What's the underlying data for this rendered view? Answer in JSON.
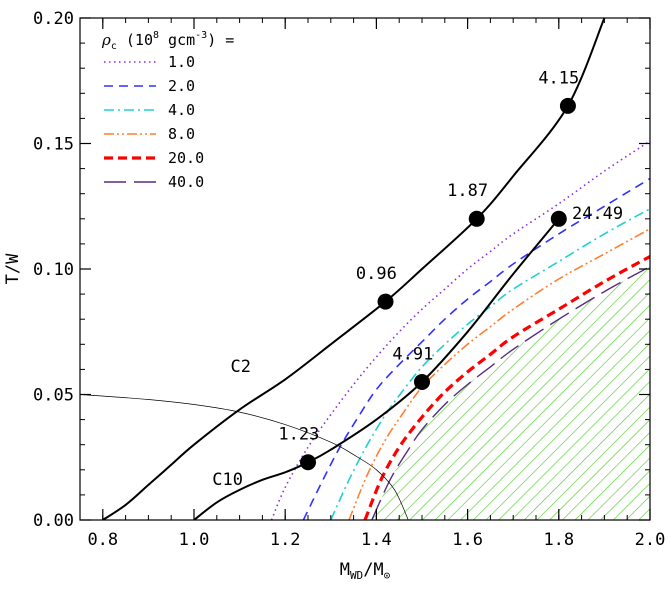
{
  "chart_data": {
    "type": "line",
    "xlabel": "M",
    "xlabel_sub": "WD",
    "xlabel_tail": "/M",
    "xlabel_symbol": "⊙",
    "ylabel": "T/W",
    "xlim": [
      0.75,
      2.0
    ],
    "ylim": [
      0.0,
      0.2
    ],
    "xticks": [
      0.8,
      1.0,
      1.2,
      1.4,
      1.6,
      1.8,
      2.0
    ],
    "xtick_labels": [
      "0.8",
      "1.0",
      "1.2",
      "1.4",
      "1.6",
      "1.8",
      "2.0"
    ],
    "yticks": [
      0.0,
      0.05,
      0.1,
      0.15,
      0.2
    ],
    "ytick_labels": [
      "0.00",
      "0.05",
      "0.10",
      "0.15",
      "0.20"
    ],
    "legend": {
      "placement": "top-left",
      "title_symbol": "ρ",
      "title_sub": "c",
      "title_pre": " (10",
      "title_sup": "8",
      "title_mid": " gcm",
      "title_sup2": "-3",
      "title_post": ") ="
    },
    "series": [
      {
        "name": "1.0",
        "style": "dotted",
        "color": "#8a2be2",
        "width": 1.6,
        "x": [
          1.17,
          1.2,
          1.25,
          1.3,
          1.35,
          1.4,
          1.45,
          1.5,
          1.55,
          1.6,
          1.65,
          1.7,
          1.8,
          1.9,
          2.0
        ],
        "y": [
          0.0,
          0.013,
          0.029,
          0.042,
          0.054,
          0.065,
          0.075,
          0.084,
          0.092,
          0.1,
          0.107,
          0.114,
          0.126,
          0.139,
          0.151
        ]
      },
      {
        "name": "2.0",
        "style": "dashed",
        "color": "#3030ff",
        "width": 1.6,
        "x": [
          1.24,
          1.28,
          1.32,
          1.36,
          1.4,
          1.45,
          1.5,
          1.55,
          1.6,
          1.65,
          1.7,
          1.8,
          1.9,
          2.0
        ],
        "y": [
          0.0,
          0.015,
          0.029,
          0.041,
          0.052,
          0.062,
          0.071,
          0.08,
          0.088,
          0.095,
          0.102,
          0.114,
          0.125,
          0.136
        ]
      },
      {
        "name": "4.0",
        "style": "dashdot",
        "color": "#20d0d0",
        "width": 1.6,
        "x": [
          1.3,
          1.34,
          1.38,
          1.42,
          1.46,
          1.5,
          1.55,
          1.6,
          1.65,
          1.7,
          1.8,
          1.9,
          2.0
        ],
        "y": [
          0.0,
          0.016,
          0.03,
          0.042,
          0.052,
          0.061,
          0.07,
          0.078,
          0.085,
          0.092,
          0.103,
          0.114,
          0.124
        ]
      },
      {
        "name": "8.0",
        "style": "dashdotdot",
        "color": "#ff7f30",
        "width": 1.6,
        "x": [
          1.34,
          1.38,
          1.42,
          1.46,
          1.5,
          1.55,
          1.6,
          1.65,
          1.7,
          1.8,
          1.9,
          2.0
        ],
        "y": [
          0.0,
          0.018,
          0.032,
          0.043,
          0.053,
          0.062,
          0.07,
          0.077,
          0.084,
          0.096,
          0.106,
          0.116
        ]
      },
      {
        "name": "20.0",
        "style": "dashed-bold",
        "color": "#ff0000",
        "width": 3.2,
        "x": [
          1.375,
          1.41,
          1.45,
          1.5,
          1.55,
          1.6,
          1.65,
          1.7,
          1.8,
          1.9,
          2.0
        ],
        "y": [
          0.0,
          0.016,
          0.029,
          0.041,
          0.051,
          0.059,
          0.066,
          0.073,
          0.084,
          0.095,
          0.105
        ]
      },
      {
        "name": "40.0",
        "style": "longdash",
        "color": "#5a2a80",
        "width": 1.4,
        "x": [
          1.39,
          1.43,
          1.47,
          1.5,
          1.55,
          1.6,
          1.65,
          1.7,
          1.8,
          1.9,
          2.0
        ],
        "y": [
          0.0,
          0.016,
          0.028,
          0.036,
          0.046,
          0.054,
          0.061,
          0.068,
          0.08,
          0.091,
          0.101
        ]
      }
    ],
    "shaded_region": {
      "color": "#55cc33",
      "x": [
        1.39,
        1.43,
        1.47,
        1.5,
        1.55,
        1.6,
        1.65,
        1.7,
        1.8,
        1.9,
        2.0
      ],
      "y": [
        0.0,
        0.016,
        0.028,
        0.036,
        0.046,
        0.054,
        0.061,
        0.068,
        0.08,
        0.091,
        0.101
      ]
    },
    "sequences": [
      {
        "name": "C2",
        "label_x": 1.08,
        "label_y": 0.059,
        "x": [
          0.8,
          0.85,
          0.9,
          0.95,
          1.0,
          1.1,
          1.2,
          1.3,
          1.42,
          1.5,
          1.62,
          1.7,
          1.82,
          1.9
        ],
        "y": [
          0.0,
          0.006,
          0.014,
          0.022,
          0.03,
          0.044,
          0.056,
          0.07,
          0.087,
          0.1,
          0.12,
          0.137,
          0.165,
          0.2
        ],
        "points": [
          {
            "x": 1.42,
            "y": 0.087,
            "label": "0.96",
            "lx": 1.4,
            "ly": 0.096
          },
          {
            "x": 1.62,
            "y": 0.12,
            "label": "1.87",
            "lx": 1.6,
            "ly": 0.129
          },
          {
            "x": 1.82,
            "y": 0.165,
            "label": "4.15",
            "lx": 1.8,
            "ly": 0.174
          }
        ]
      },
      {
        "name": "C10",
        "label_x": 1.04,
        "label_y": 0.014,
        "x": [
          1.0,
          1.05,
          1.1,
          1.15,
          1.2,
          1.25,
          1.3,
          1.4,
          1.5,
          1.6,
          1.7,
          1.8
        ],
        "y": [
          0.0,
          0.007,
          0.012,
          0.016,
          0.019,
          0.023,
          0.028,
          0.04,
          0.055,
          0.075,
          0.098,
          0.12
        ],
        "points": [
          {
            "x": 1.25,
            "y": 0.023,
            "label": "1.23",
            "lx": 1.23,
            "ly": 0.032
          },
          {
            "x": 1.5,
            "y": 0.055,
            "label": "4.91",
            "lx": 1.48,
            "ly": 0.064
          },
          {
            "x": 1.8,
            "y": 0.12,
            "label": "24.49",
            "lx": 1.885,
            "ly": 0.12
          }
        ]
      }
    ],
    "thin_curve": {
      "x": [
        0.75,
        0.9,
        1.0,
        1.1,
        1.2,
        1.3,
        1.35,
        1.4,
        1.44,
        1.47
      ],
      "y": [
        0.05,
        0.048,
        0.046,
        0.043,
        0.038,
        0.031,
        0.026,
        0.02,
        0.012,
        0.0
      ]
    }
  }
}
